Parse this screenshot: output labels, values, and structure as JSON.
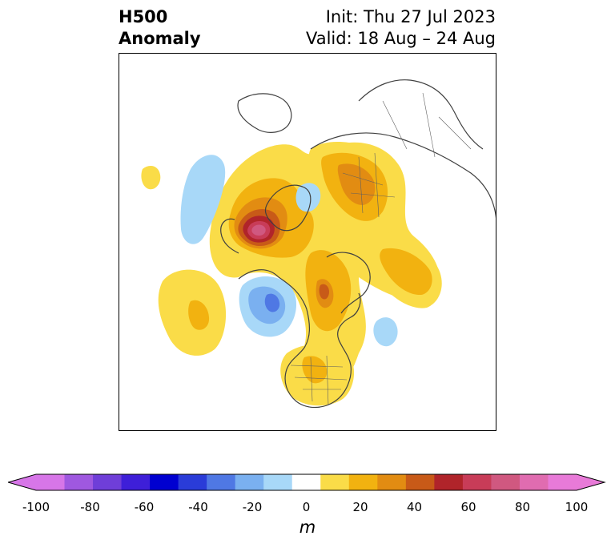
{
  "title": {
    "line1": "H500",
    "line2": "Anomaly",
    "init": "Init: Thu 27 Jul 2023",
    "valid": "Valid: 18 Aug – 24 Aug"
  },
  "colorbar": {
    "units": "m",
    "ticks": [
      "-100",
      "-80",
      "-60",
      "-40",
      "-20",
      "0",
      "20",
      "40",
      "60",
      "80",
      "100"
    ],
    "levels": [
      -100,
      -90,
      -80,
      -70,
      -60,
      -50,
      -40,
      -30,
      -20,
      -10,
      10,
      20,
      30,
      40,
      50,
      60,
      70,
      80,
      90,
      100
    ],
    "colors": [
      "#d776e8",
      "#9f58e0",
      "#6f3ed8",
      "#3e1fd8",
      "#0000d0",
      "#2a3cd8",
      "#4f78e4",
      "#7ab0f0",
      "#a8d8f8",
      "#ffffff",
      "#fadc48",
      "#f2b210",
      "#e28c12",
      "#c85a18",
      "#b0242a",
      "#c83c58",
      "#d05880",
      "#e06cb0",
      "#e87ad8"
    ],
    "under_color": "#d776e8",
    "over_color": "#e87ad8"
  },
  "map": {
    "projection": "polar-stereographic",
    "field": "500 hPa geopotential height anomaly"
  }
}
